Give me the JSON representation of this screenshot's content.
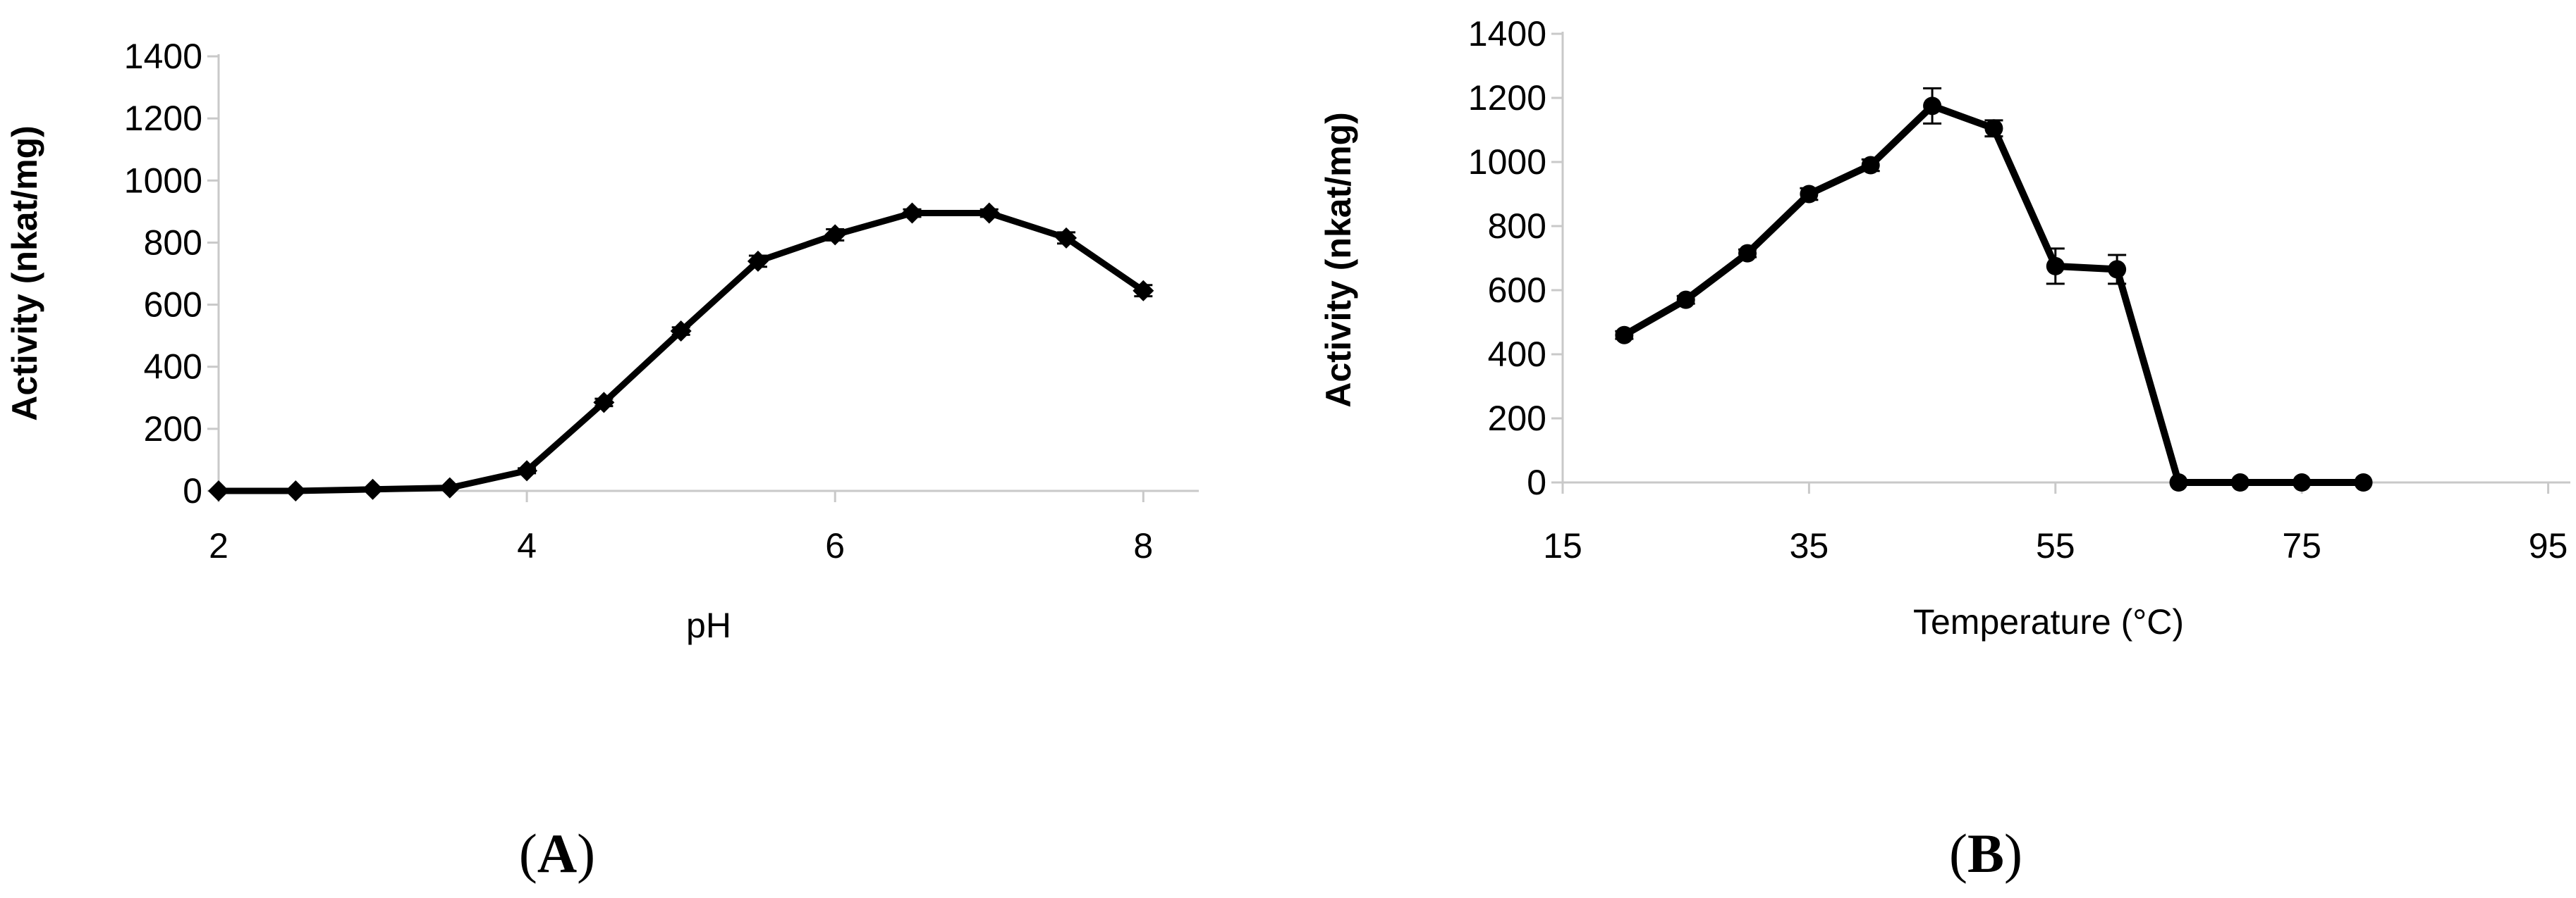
{
  "figure": {
    "panel_a": {
      "open": "(",
      "letter": "A",
      "close": ")"
    },
    "panel_b": {
      "open": "(",
      "letter": "B",
      "close": ")"
    }
  },
  "colors": {
    "series": "#000000",
    "axis": "#c9c9c9",
    "text": "#000000",
    "background": "#ffffff"
  },
  "chart_data": [
    {
      "id": "chart-a",
      "type": "line",
      "title": "",
      "xlabel": "pH",
      "ylabel": "Activity (nkat/mg)",
      "x": [
        2,
        2.5,
        3,
        3.5,
        4,
        4.5,
        5,
        5.5,
        6,
        6.5,
        7,
        7.5,
        8
      ],
      "y": [
        0,
        0,
        5,
        10,
        65,
        285,
        515,
        740,
        825,
        895,
        895,
        815,
        645
      ],
      "yerr": [
        0,
        0,
        0,
        0,
        8,
        12,
        12,
        18,
        18,
        12,
        12,
        18,
        18
      ],
      "xticks": [
        2,
        4,
        6,
        8
      ],
      "xlim": [
        2,
        8.36
      ],
      "ylim": [
        0,
        1400
      ],
      "ytick_step": 200,
      "marker": "diamond",
      "grid": false,
      "legend": "none"
    },
    {
      "id": "chart-b",
      "type": "line",
      "title": "",
      "xlabel": "Temperature (°C)",
      "ylabel": "Activity (nkat/mg)",
      "x": [
        20,
        25,
        30,
        35,
        40,
        45,
        50,
        55,
        60,
        65,
        70,
        75,
        80
      ],
      "y": [
        460,
        570,
        715,
        900,
        990,
        1175,
        1105,
        675,
        665,
        0,
        0,
        0,
        0
      ],
      "yerr": [
        12,
        12,
        12,
        18,
        18,
        55,
        25,
        55,
        45,
        0,
        0,
        0,
        0
      ],
      "xticks": [
        15,
        35,
        55,
        75,
        95
      ],
      "xlim": [
        15,
        96.8
      ],
      "ylim": [
        0,
        1400
      ],
      "ytick_step": 200,
      "marker": "circle",
      "grid": false,
      "legend": "none"
    }
  ]
}
